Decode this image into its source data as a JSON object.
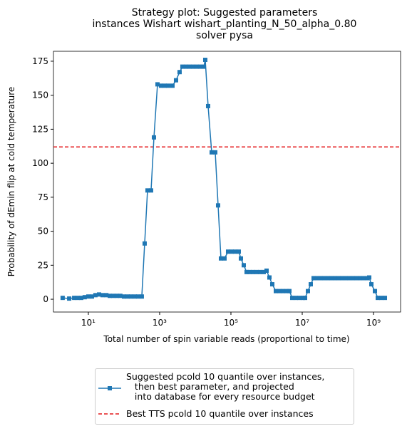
{
  "chart_data": {
    "type": "line",
    "title": "Strategy plot: Suggested parameters\n instances Wishart wishart_planting_N_50_alpha_0.80\n solver pysa",
    "x_label": "Total number of spin variable reads (proportional to time)",
    "y_label": "Probability of dEmin flip at cold temperature",
    "x": [
      1.9,
      2.9,
      4,
      5,
      6.3,
      7.9,
      10,
      12.6,
      15.8,
      20,
      25,
      32,
      40,
      50,
      63,
      79,
      100,
      126,
      158,
      200,
      251,
      316,
      380,
      457,
      575,
      692,
      871,
      1096,
      1380,
      1738,
      2291,
      2884,
      3631,
      4365,
      5495,
      6918,
      8710,
      10965,
      13804,
      17378,
      19055,
      22909,
      28840,
      36308,
      43652,
      52481,
      66069,
      83176,
      104713,
      131826,
      165959,
      190546,
      229087,
      275423,
      331131,
      416869,
      524807,
      660693,
      831764,
      1000000,
      1202264,
      1445440,
      1819701,
      2290868,
      2884032,
      3630781,
      4365158,
      5248075,
      6606934,
      8317638,
      10471285,
      12022644,
      14454398,
      17378008,
      20892961,
      26302680,
      33113112,
      41686938,
      52480746,
      66069345,
      83176377,
      104712855,
      131825674,
      165958691,
      208929613,
      263026799,
      331131121,
      416869383,
      524807460,
      660693448,
      758577575,
      870963590,
      1096478196,
      1318256739,
      1659586907,
      2089296131
    ],
    "series": [
      {
        "name": "Suggested pcold 10 quantile over instances,\n   then best parameter, and projected\n   into database for every resource budget",
        "color": "#1f77b4",
        "values": [
          1,
          0.5,
          1,
          1,
          1,
          1.5,
          2,
          2,
          3,
          3.5,
          3,
          3,
          2.5,
          2.5,
          2.5,
          2.5,
          2,
          2,
          2,
          2,
          2,
          2,
          41,
          80,
          80,
          119,
          158,
          157,
          157,
          157,
          157,
          161,
          167,
          171,
          171,
          171,
          171,
          171,
          171,
          171,
          176,
          142,
          108,
          108,
          69,
          30,
          30,
          35,
          35,
          35,
          35,
          30,
          25,
          20,
          20,
          20,
          20,
          20,
          20,
          21,
          16,
          11,
          6,
          6,
          6,
          6,
          6,
          1,
          1,
          1,
          1,
          1,
          6,
          11,
          15.5,
          15.5,
          15.5,
          15.5,
          15.5,
          15.5,
          15.5,
          15.5,
          15.5,
          15.5,
          15.5,
          15.5,
          15.5,
          15.5,
          15.5,
          15.5,
          16,
          11,
          6,
          1,
          1,
          1
        ]
      }
    ],
    "hline": {
      "name": "Best TTS pcold 10 quantile over instances",
      "value": 112,
      "color": "#e41a1c"
    },
    "x_log": true,
    "xlim": [
      1.05,
      5750000000
    ],
    "ylim": [
      -9.4,
      182.3
    ],
    "xticks": [
      {
        "value": 10,
        "label": "10¹"
      },
      {
        "value": 1000,
        "label": "10³"
      },
      {
        "value": 100000,
        "label": "10⁵"
      },
      {
        "value": 10000000,
        "label": "10⁷"
      },
      {
        "value": 1000000000,
        "label": "10⁹"
      }
    ],
    "yticks": [
      0,
      25,
      50,
      75,
      100,
      125,
      150,
      175
    ]
  }
}
